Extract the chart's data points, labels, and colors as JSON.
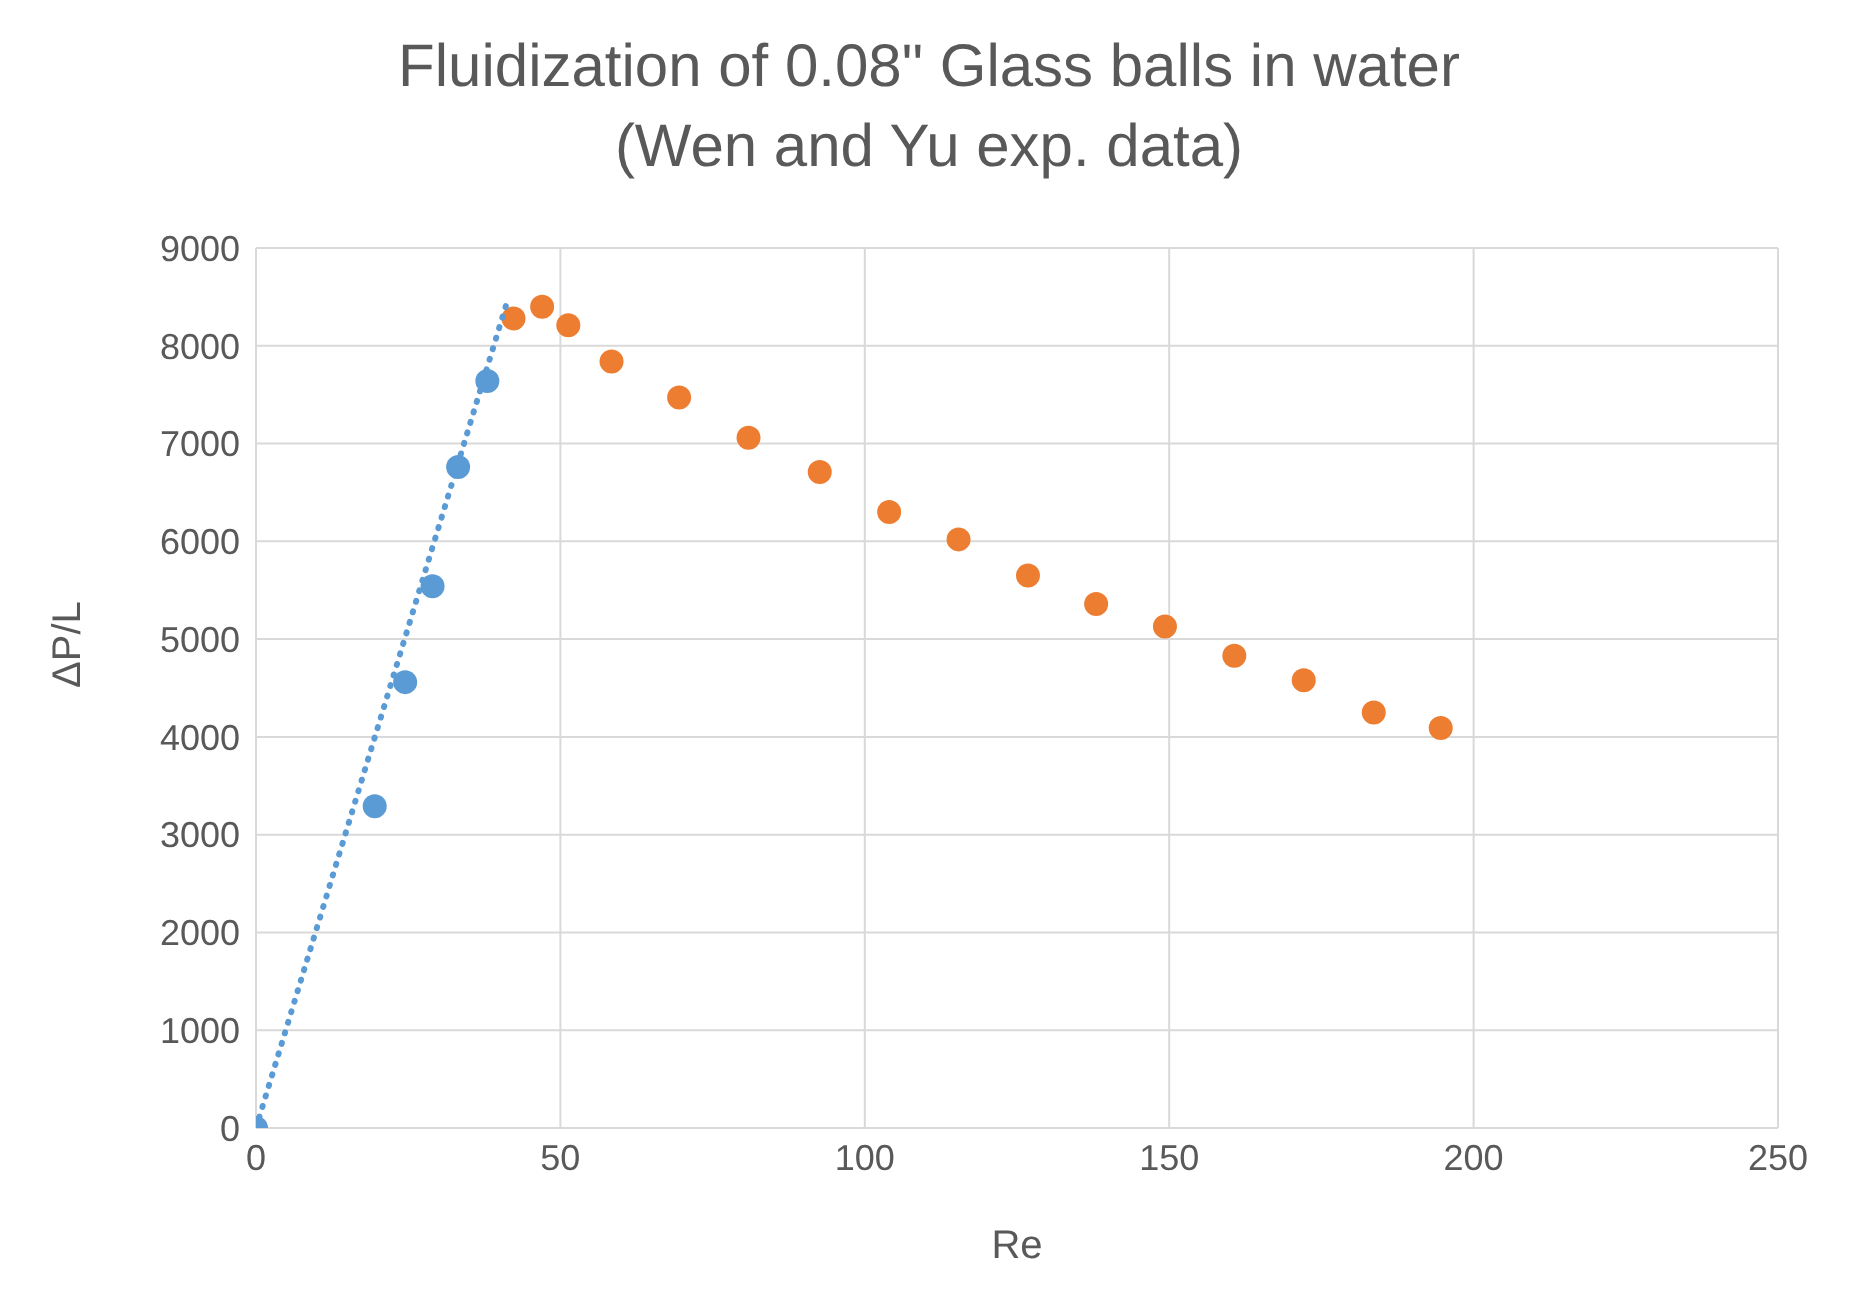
{
  "chart_data": {
    "type": "scatter",
    "title": "Fluidization of 0.08\" Glass balls in water",
    "subtitle": "(Wen and Yu exp. data)",
    "xlabel": "Re",
    "ylabel": "ΔP/L",
    "xlim": [
      0,
      250
    ],
    "xticks": [
      0,
      50,
      100,
      150,
      200,
      250
    ],
    "ylim": [
      0,
      9000
    ],
    "yticks": [
      0,
      1000,
      2000,
      3000,
      4000,
      5000,
      6000,
      7000,
      8000,
      9000
    ],
    "grid": true,
    "marker": "circle",
    "series": [
      {
        "color": "#5b9bd5",
        "x": [
          0,
          19.5,
          24.5,
          29,
          33.2,
          38
        ],
        "values": [
          0,
          3290,
          4560,
          5540,
          6760,
          7640
        ]
      },
      {
        "color": "#ed7d31",
        "x": [
          42.3,
          47,
          51.3,
          58.4,
          69.5,
          80.9,
          92.6,
          104,
          115.4,
          126.8,
          138,
          149.3,
          160.7,
          172.1,
          183.6,
          194.6
        ],
        "values": [
          8280,
          8400,
          8210,
          7840,
          7470,
          7060,
          6710,
          6300,
          6020,
          5650,
          5360,
          5130,
          4830,
          4580,
          4250,
          4090
        ]
      },
      {
        "type": "line",
        "marker": "none",
        "line_style": "dotted",
        "color": "#5b9bd5",
        "x": [
          0,
          41.3
        ],
        "values": [
          0,
          8460
        ]
      }
    ]
  }
}
